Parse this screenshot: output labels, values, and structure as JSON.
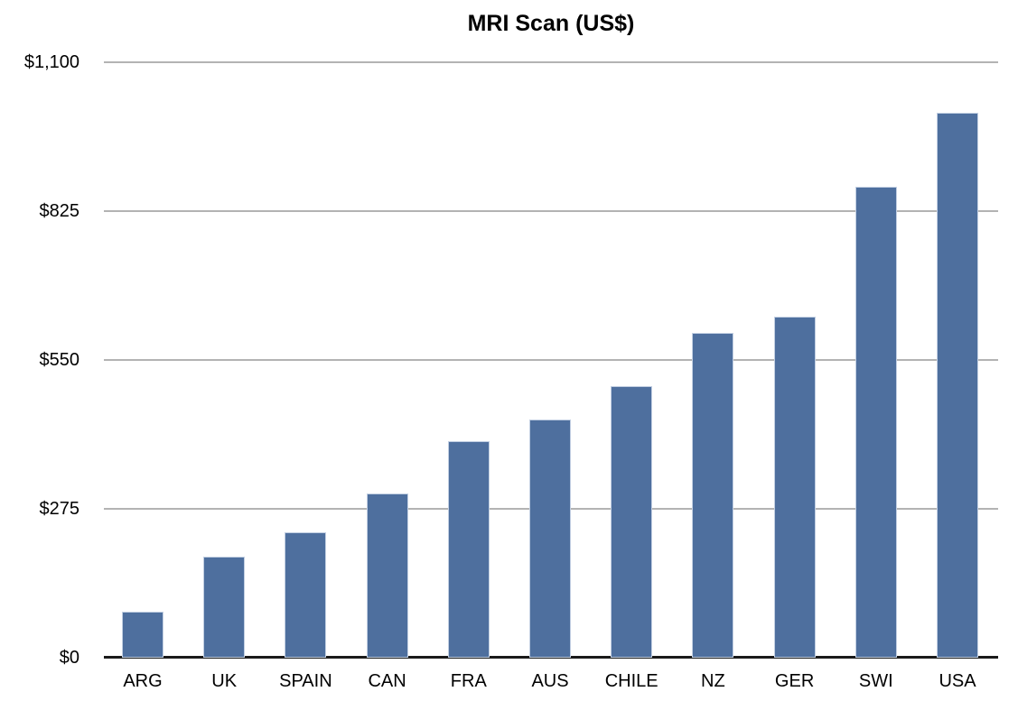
{
  "title": "MRI Scan (US$)",
  "colors": {
    "bar_fill": "#4e6f9e",
    "bar_edge": "#c2cfe2",
    "gridline": "#b3b3b3",
    "axis": "#1a1a1a",
    "text": "#000000"
  },
  "chart_data": {
    "type": "bar",
    "title": "MRI Scan (US$)",
    "categories": [
      "ARG",
      "UK",
      "SPAIN",
      "CAN",
      "FRA",
      "AUS",
      "CHILE",
      "NZ",
      "GER",
      "SWI",
      "USA"
    ],
    "values": [
      85,
      187,
      232,
      304,
      400,
      440,
      502,
      600,
      630,
      870,
      1006
    ],
    "xlabel": "",
    "ylabel": "",
    "ylim": [
      0,
      1100
    ],
    "y_tick_values": [
      0,
      275,
      550,
      825,
      1100
    ],
    "y_tick_labels": [
      "$0",
      "$275",
      "$550",
      "$825",
      "$1,100"
    ],
    "grid": "horizontal-only",
    "legend": "none",
    "bar_color": "#4e6f9e"
  }
}
